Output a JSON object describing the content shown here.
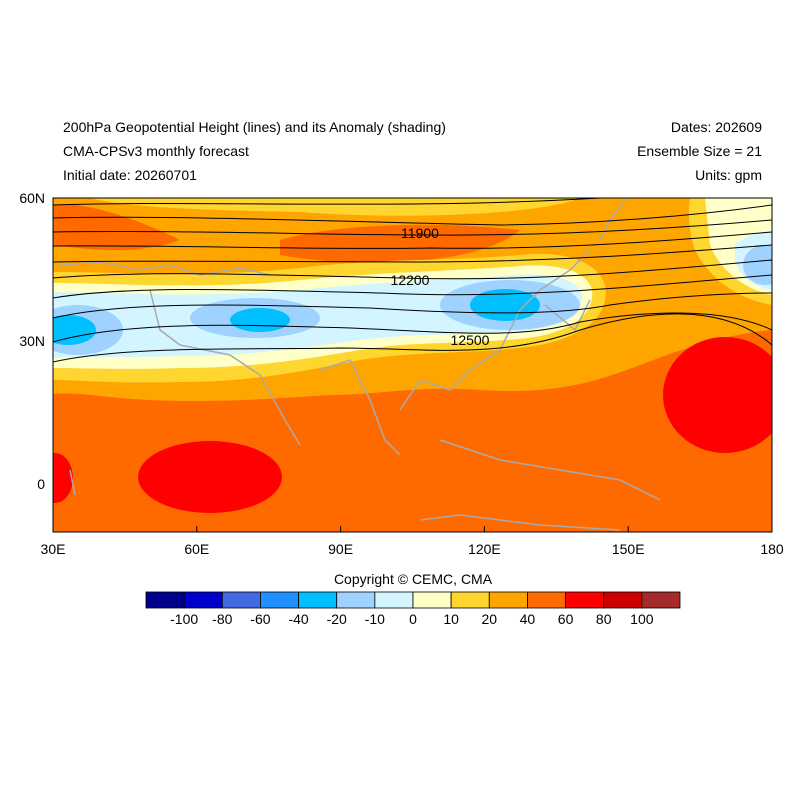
{
  "header": {
    "title": "200hPa Geopotential Height (lines) and its Anomaly (shading)",
    "subtitle": "CMA-CPSv3 monthly forecast",
    "initial_date": "Initial date: 20260701",
    "dates": "Dates: 202609",
    "ensemble": "Ensemble Size = 21",
    "units": "Units: gpm"
  },
  "map": {
    "lat_labels": [
      "60N",
      "30N",
      "0"
    ],
    "lon_labels": [
      "30E",
      "60E",
      "90E",
      "120E",
      "150E",
      "180"
    ],
    "contour_labels": [
      "11900",
      "12200",
      "12500"
    ]
  },
  "colorbar": {
    "labels": [
      "-100",
      "-80",
      "-60",
      "-40",
      "-20",
      "-10",
      "0",
      "10",
      "20",
      "40",
      "60",
      "80",
      "100"
    ],
    "colors": [
      "#00008b",
      "#0000cd",
      "#4169e1",
      "#1e90ff",
      "#00bfff",
      "#a0d2ff",
      "#d2f5ff",
      "#ffffc8",
      "#ffd52f",
      "#ffa500",
      "#ff6a00",
      "#ff0000",
      "#cc0000",
      "#a52a2a"
    ]
  },
  "footer": {
    "copyright": "Copyright © CEMC, CMA"
  }
}
